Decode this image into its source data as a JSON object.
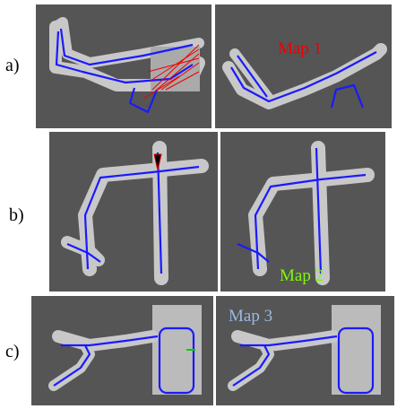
{
  "row_labels": [
    "a)",
    "b)",
    "c)"
  ],
  "map_labels": [
    "Map 1",
    "Map 2",
    "Map 3"
  ]
}
